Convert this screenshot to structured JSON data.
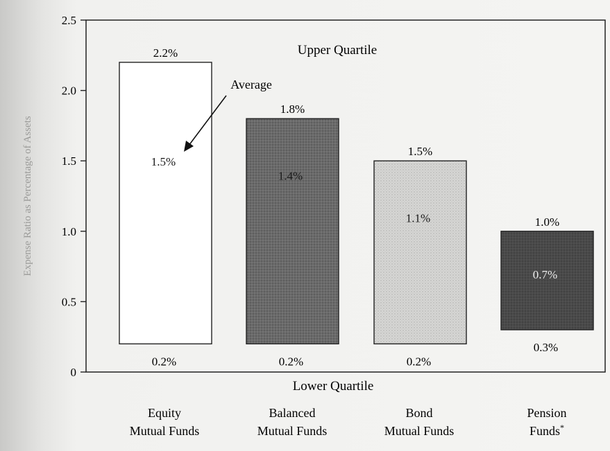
{
  "chart_data": {
    "type": "bar",
    "title": "",
    "ylabel": "Expense Ratio as Percentage of Assets",
    "ylim": [
      0,
      2.5
    ],
    "yticks": [
      "0",
      "0.5",
      "1.0",
      "1.5",
      "2.0",
      "2.5"
    ],
    "ytick_values": [
      0,
      0.5,
      1.0,
      1.5,
      2.0,
      2.5
    ],
    "top_annotation": "Upper Quartile",
    "bottom_annotation": "Lower Quartile",
    "average_label": "Average",
    "categories": [
      {
        "line1": "Equity",
        "line2": "Mutual Funds",
        "sup": ""
      },
      {
        "line1": "Balanced",
        "line2": "Mutual Funds",
        "sup": ""
      },
      {
        "line1": "Bond",
        "line2": "Mutual Funds",
        "sup": ""
      },
      {
        "line1": "Pension",
        "line2": "Funds",
        "sup": "*"
      }
    ],
    "series": [
      {
        "name": "Upper Quartile",
        "values": [
          2.2,
          1.8,
          1.5,
          1.0
        ],
        "labels": [
          "2.2%",
          "1.8%",
          "1.5%",
          "1.0%"
        ]
      },
      {
        "name": "Average",
        "values": [
          1.5,
          1.4,
          1.1,
          0.7
        ],
        "labels": [
          "1.5%",
          "1.4%",
          "1.1%",
          "0.7%"
        ]
      },
      {
        "name": "Lower Quartile",
        "values": [
          0.2,
          0.2,
          0.2,
          0.3
        ],
        "labels": [
          "0.2%",
          "0.2%",
          "0.2%",
          "0.3%"
        ]
      }
    ],
    "colors": [
      "#ffffff",
      "#6a6a6a",
      "#d6d6d4",
      "#4a4a4a"
    ],
    "average_text_colors": [
      "#1a1a1a",
      "#1a1a1a",
      "#1a1a1a",
      "#eeeeee"
    ],
    "grid": false,
    "legend": "none"
  }
}
